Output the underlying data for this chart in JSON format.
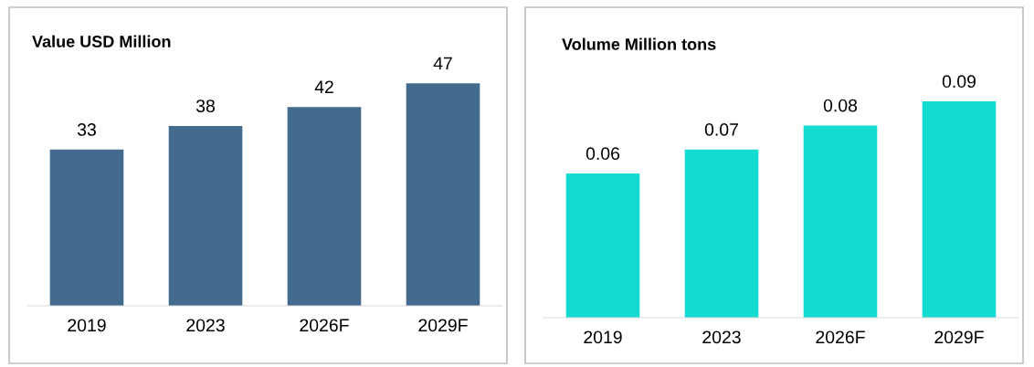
{
  "chart_data": [
    {
      "type": "bar",
      "title": "Value USD Million",
      "categories": [
        "2019",
        "2023",
        "2026F",
        "2029F"
      ],
      "values": [
        33,
        38,
        42,
        47
      ],
      "color": "#426b8e",
      "data_labels": true
    },
    {
      "type": "bar",
      "title": "Volume Million tons",
      "categories": [
        "2019",
        "2023",
        "2026F",
        "2029F"
      ],
      "values": [
        0.06,
        0.07,
        0.08,
        0.09
      ],
      "color": "#14dbd1",
      "data_labels": true
    }
  ]
}
